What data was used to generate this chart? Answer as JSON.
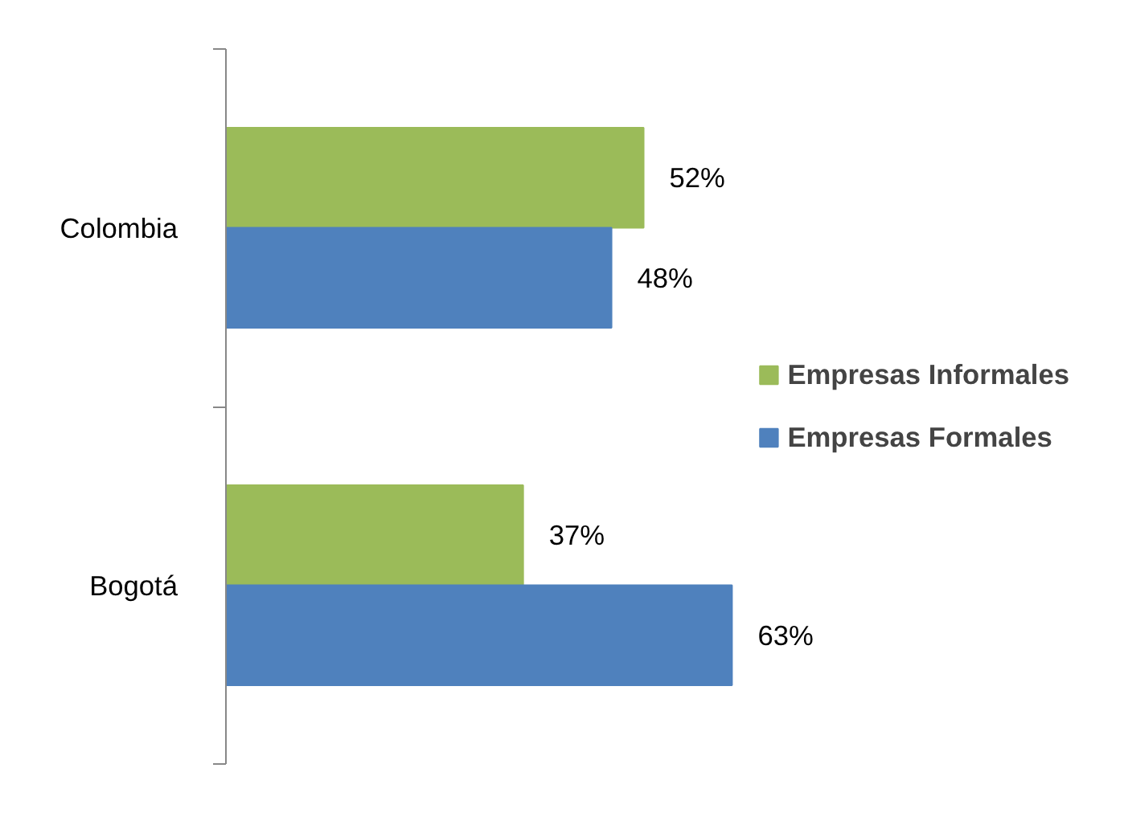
{
  "chart_data": {
    "type": "bar",
    "orientation": "horizontal",
    "categories": [
      "Colombia",
      "Bogotá"
    ],
    "series": [
      {
        "name": "Empresas Informales",
        "color": "#9bbb59",
        "values": [
          52,
          37
        ],
        "value_labels": [
          "52%",
          "37%"
        ]
      },
      {
        "name": "Empresas Formales",
        "color": "#4f81bd",
        "values": [
          48,
          63
        ],
        "value_labels": [
          "48%",
          "63%"
        ]
      }
    ],
    "legend": "right",
    "grid": false
  }
}
